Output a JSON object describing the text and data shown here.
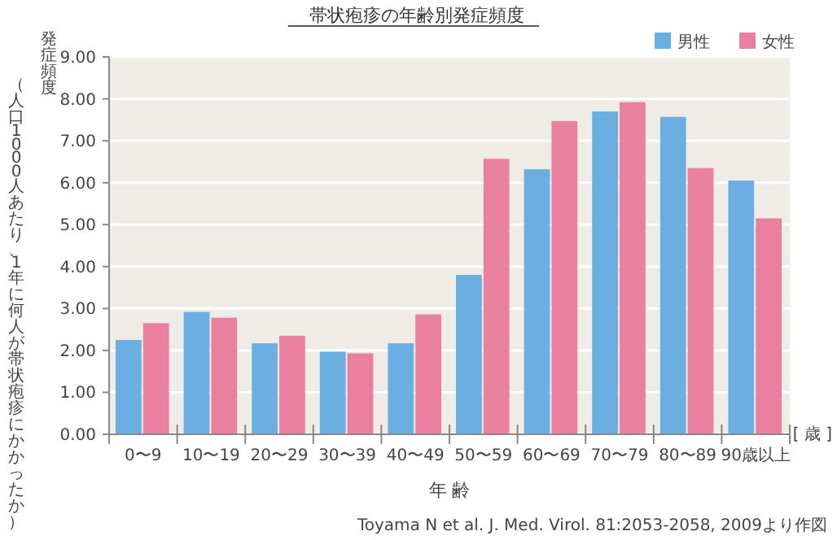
{
  "chart_data": {
    "type": "bar",
    "title": "帯状疱疹の年齢別発症頻度",
    "ylabel": "発症頻度",
    "xlabel": "年 齢",
    "categories": [
      "0〜9",
      "10〜19",
      "20〜29",
      "30〜39",
      "40〜49",
      "50〜59",
      "60〜69",
      "70〜79",
      "80〜89",
      "90歳以上"
    ],
    "series": [
      {
        "name": "男性",
        "color": "#6aaee2",
        "values": [
          2.25,
          2.92,
          2.17,
          1.97,
          2.17,
          3.8,
          6.32,
          7.7,
          7.57,
          6.05
        ]
      },
      {
        "name": "女性",
        "color": "#e9809f",
        "values": [
          2.65,
          2.78,
          2.35,
          1.93,
          2.86,
          6.57,
          7.47,
          7.92,
          6.35,
          5.15
        ]
      }
    ],
    "ylim": [
      0,
      9
    ],
    "yticks": [
      {
        "value": 0,
        "label": "0.00"
      },
      {
        "value": 1,
        "label": "1.00"
      },
      {
        "value": 2,
        "label": "2.00"
      },
      {
        "value": 3,
        "label": "3.00"
      },
      {
        "value": 4,
        "label": "4.00"
      },
      {
        "value": 5,
        "label": "5.00"
      },
      {
        "value": 6,
        "label": "6.00"
      },
      {
        "value": 7,
        "label": "7.00"
      },
      {
        "value": 8,
        "label": "8.00"
      },
      {
        "value": 9,
        "label": "9.00"
      }
    ],
    "grid": "y",
    "legend": "top right",
    "annotations": [
      "（人口1000人あたり、1年に何人が帯状疱疹にかかったか）",
      "[ 歳 ]",
      "Toyama N et al. J. Med. Virol. 81:2053-2058, 2009より作図"
    ]
  }
}
